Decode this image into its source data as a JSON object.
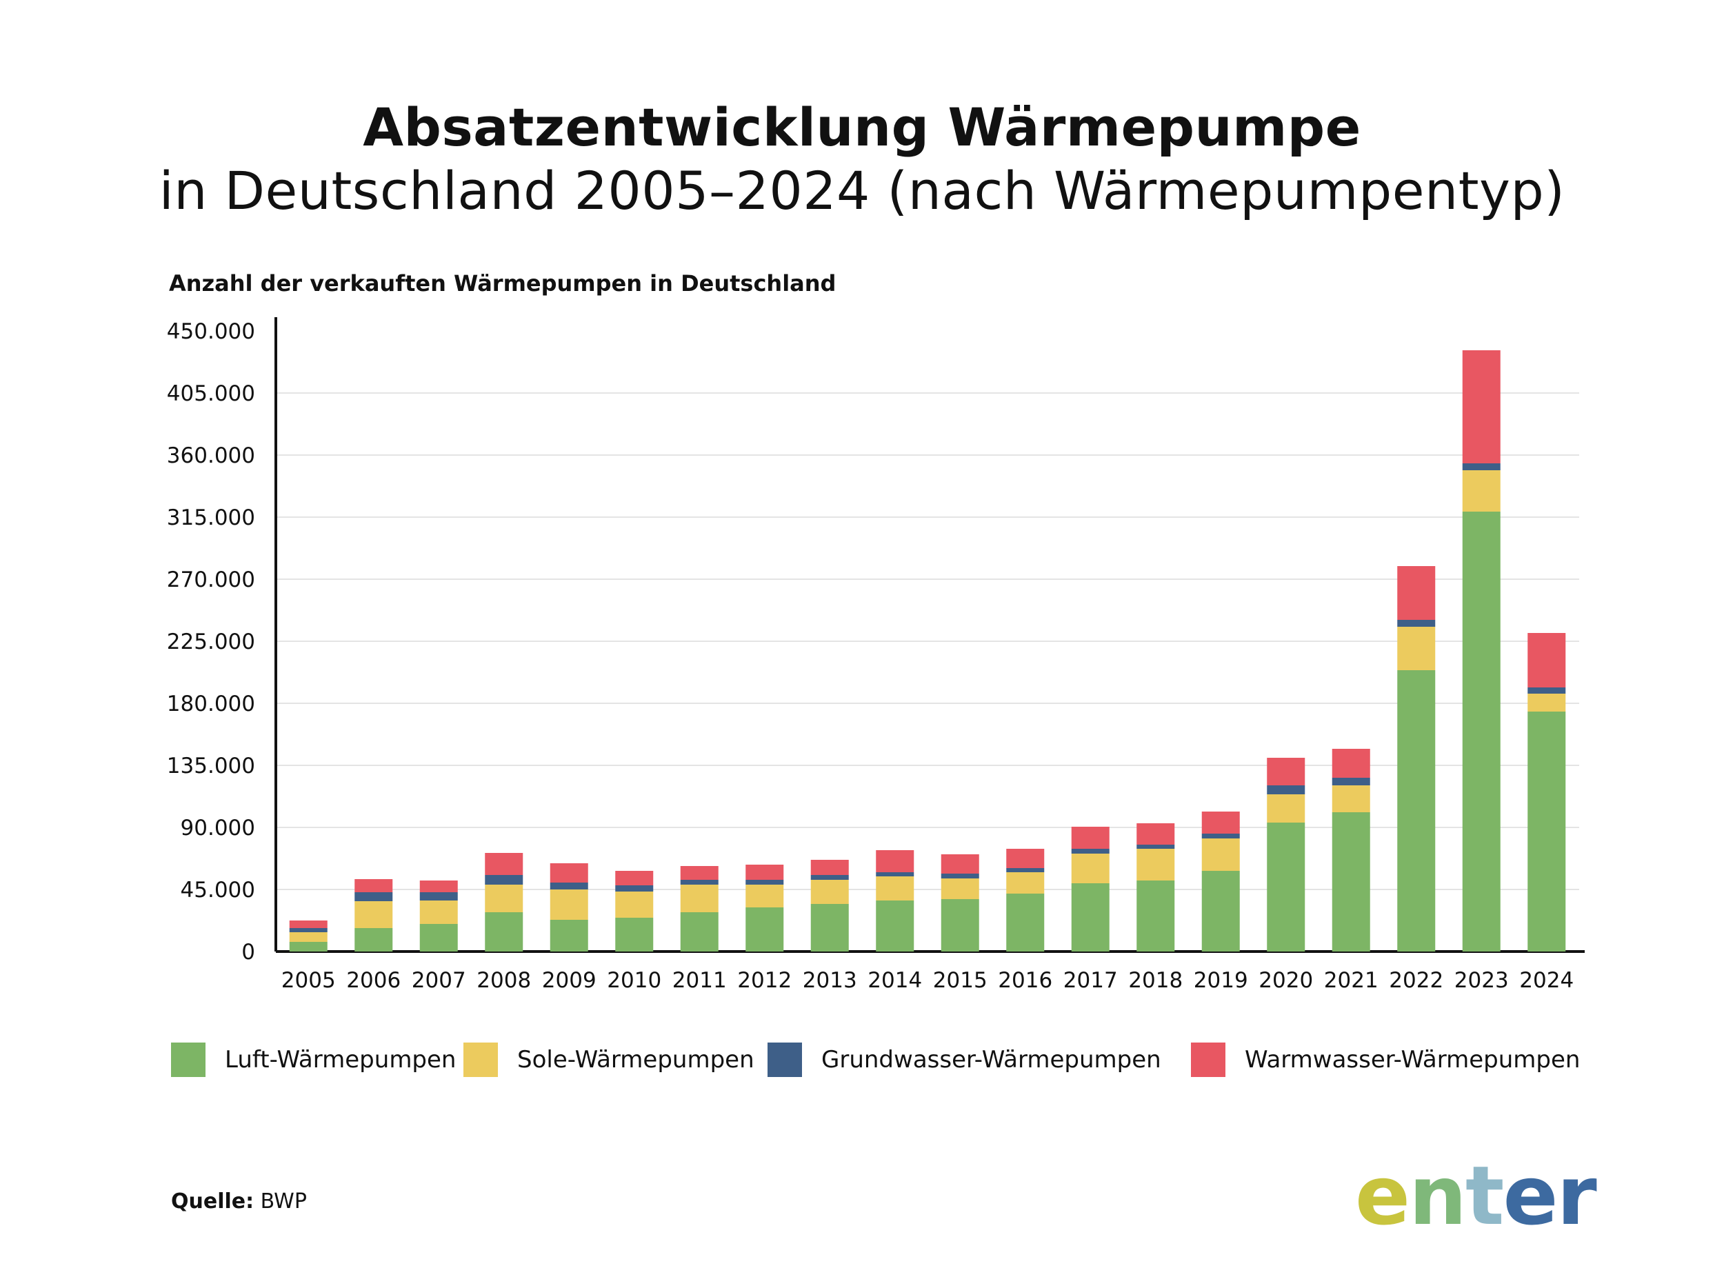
{
  "title": {
    "line1": "Absatzentwicklung Wärmepumpe",
    "line2": "in Deutschland 2005–2024 (nach Wärmepumpentyp)"
  },
  "source": {
    "label": "Quelle:",
    "value": "BWP"
  },
  "logo": {
    "text": "enter",
    "colors": [
      "#c8c43e",
      "#7fb87a",
      "#8fb8c8",
      "#3d6aa0"
    ]
  },
  "colors": {
    "luft": "#7db565",
    "sole": "#eccb5e",
    "grundwasser": "#3e5f88",
    "warmwasser": "#e85762",
    "grid": "#e4e4e4",
    "axis": "#111111"
  },
  "chart_data": {
    "type": "bar",
    "stacked": true,
    "title": "Absatzentwicklung Wärmepumpe in Deutschland 2005–2024 (nach Wärmepumpentyp)",
    "ylabel": "Anzahl der verkauften Wärmepumpen in Deutschland",
    "xlabel": "",
    "ylim": [
      0,
      450000
    ],
    "yticks": [
      0,
      45000,
      90000,
      135000,
      180000,
      225000,
      270000,
      315000,
      360000,
      405000,
      450000
    ],
    "ytick_labels": [
      "0",
      "45.000",
      "90.000",
      "135.000",
      "180.000",
      "225.000",
      "270.000",
      "315.000",
      "360.000",
      "405.000",
      "450.000"
    ],
    "grid": true,
    "legend_position": "bottom",
    "categories": [
      "2005",
      "2006",
      "2007",
      "2008",
      "2009",
      "2010",
      "2011",
      "2012",
      "2013",
      "2014",
      "2015",
      "2016",
      "2017",
      "2018",
      "2019",
      "2020",
      "2021",
      "2022",
      "2023",
      "2024"
    ],
    "series": [
      {
        "name": "Luft-Wärmepumpen",
        "color_key": "luft",
        "values": [
          7000,
          17000,
          20000,
          28500,
          23000,
          24500,
          28500,
          32000,
          34500,
          37000,
          38000,
          42000,
          49500,
          51500,
          58500,
          93500,
          101000,
          204000,
          319000,
          174000
        ]
      },
      {
        "name": "Sole-Wärmepumpen",
        "color_key": "sole",
        "values": [
          7000,
          19500,
          17000,
          20000,
          22000,
          19000,
          20000,
          16500,
          17500,
          17500,
          15000,
          15500,
          21500,
          23000,
          23500,
          20500,
          19500,
          31500,
          30000,
          13000
        ]
      },
      {
        "name": "Grundwasser-Wärmepumpen",
        "color_key": "grundwasser",
        "values": [
          3000,
          6500,
          6000,
          7000,
          5000,
          4500,
          3500,
          3500,
          3500,
          3000,
          3500,
          3000,
          3500,
          3000,
          3500,
          6500,
          5500,
          5000,
          5000,
          4500
        ]
      },
      {
        "name": "Warmwasser-Wärmepumpen",
        "color_key": "warmwasser",
        "values": [
          5500,
          9500,
          8500,
          16000,
          14000,
          10500,
          10000,
          11000,
          11000,
          16000,
          14000,
          14000,
          16000,
          15500,
          16000,
          20000,
          21000,
          39000,
          82000,
          39500
        ]
      }
    ]
  }
}
